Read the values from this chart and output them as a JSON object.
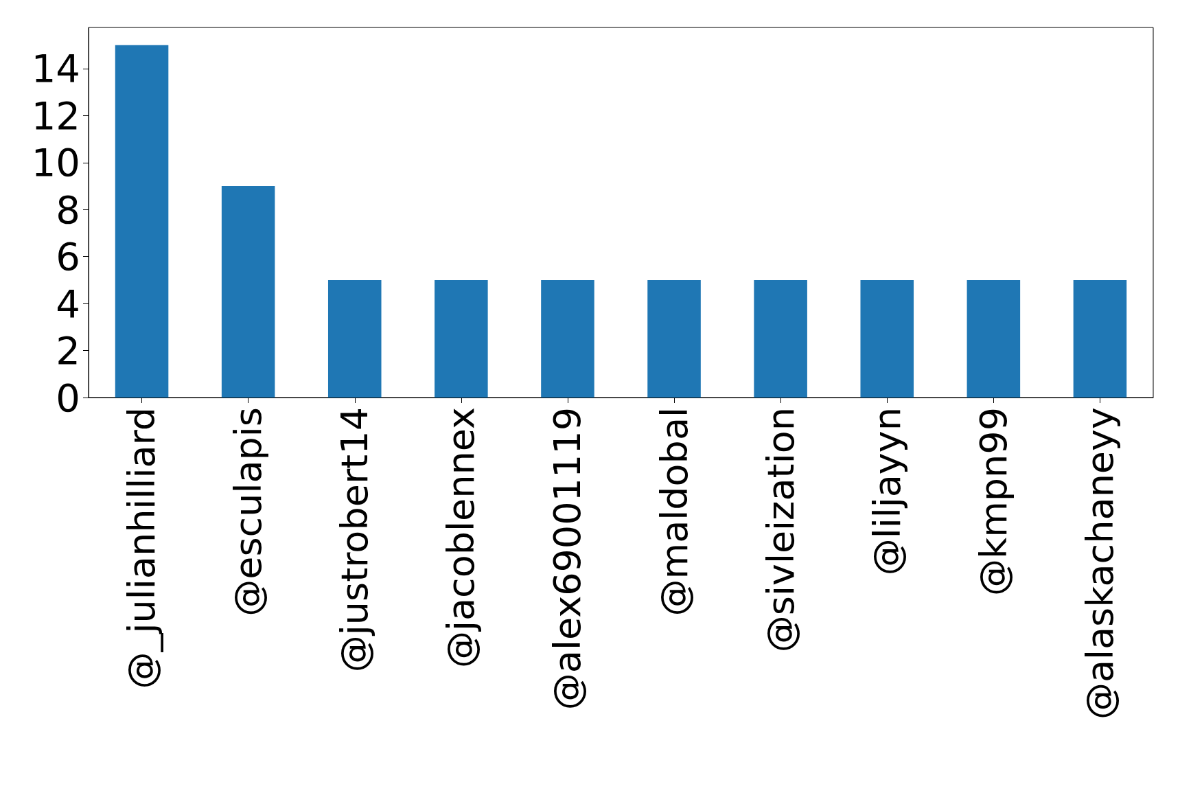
{
  "chart_data": {
    "type": "bar",
    "categories": [
      "@_julianhilliard",
      "@esculapis",
      "@justrobert14",
      "@jacoblennex",
      "@alex69001119",
      "@maldobal",
      "@sivleization",
      "@liljayyn",
      "@kmpn99",
      "@alaskachaneyy"
    ],
    "values": [
      15,
      9,
      5,
      5,
      5,
      5,
      5,
      5,
      5,
      5
    ],
    "color": "#1f77b4",
    "ylim": [
      0,
      15.75
    ],
    "yticks": [
      0,
      2,
      4,
      6,
      8,
      10,
      12,
      14
    ],
    "grid": false
  }
}
